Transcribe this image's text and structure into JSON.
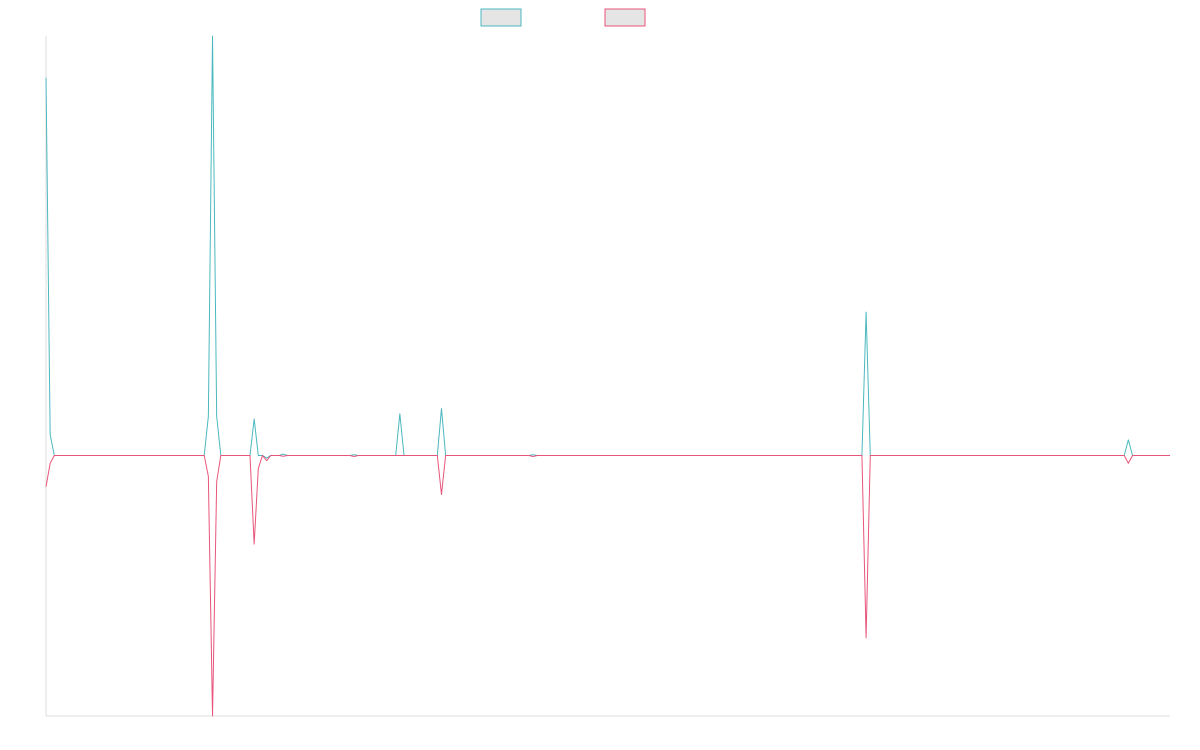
{
  "chart_data": {
    "type": "line",
    "title": "",
    "xlabel": "",
    "ylabel": "",
    "legend_position": "top-center",
    "grid": false,
    "colors": {
      "series_a": "#4bb8bf",
      "series_b": "#e8557a",
      "axis": "#dddddd",
      "legend_fill": "#e5e5e5"
    },
    "ylim": [
      -1.0,
      1.61
    ],
    "xlim": [
      0,
      270
    ],
    "series": [
      {
        "name": "",
        "color": "#4bb8bf",
        "points": [
          [
            0,
            1.45
          ],
          [
            1,
            0.08
          ],
          [
            2,
            0
          ],
          [
            38,
            0
          ],
          [
            39,
            0.15
          ],
          [
            40,
            1.61
          ],
          [
            41,
            0.15
          ],
          [
            42,
            0
          ],
          [
            49,
            0
          ],
          [
            50,
            0.14
          ],
          [
            51,
            0
          ],
          [
            52,
            0
          ],
          [
            53,
            -0.01
          ],
          [
            54,
            0
          ],
          [
            56,
            0
          ],
          [
            57,
            0.005
          ],
          [
            58,
            0
          ],
          [
            73,
            0
          ],
          [
            74,
            0.003
          ],
          [
            75,
            0
          ],
          [
            84,
            0
          ],
          [
            85,
            0.16
          ],
          [
            86,
            0
          ],
          [
            94,
            0
          ],
          [
            95,
            0.18
          ],
          [
            96,
            0
          ],
          [
            116,
            0
          ],
          [
            117,
            0.003
          ],
          [
            118,
            0
          ],
          [
            196,
            0
          ],
          [
            197,
            0.55
          ],
          [
            198,
            0
          ],
          [
            259,
            0
          ],
          [
            260,
            0.06
          ],
          [
            261,
            0
          ],
          [
            270,
            0
          ]
        ]
      },
      {
        "name": "",
        "color": "#e8557a",
        "points": [
          [
            0,
            -0.12
          ],
          [
            1,
            -0.03
          ],
          [
            2,
            0
          ],
          [
            38,
            0
          ],
          [
            39,
            -0.08
          ],
          [
            40,
            -1.0
          ],
          [
            41,
            -0.1
          ],
          [
            42,
            0
          ],
          [
            49,
            0
          ],
          [
            50,
            -0.34
          ],
          [
            51,
            -0.05
          ],
          [
            52,
            0
          ],
          [
            53,
            -0.02
          ],
          [
            54,
            0
          ],
          [
            56,
            0
          ],
          [
            57,
            -0.003
          ],
          [
            58,
            0
          ],
          [
            73,
            0
          ],
          [
            74,
            -0.004
          ],
          [
            75,
            0
          ],
          [
            94,
            0
          ],
          [
            95,
            -0.15
          ],
          [
            96,
            0
          ],
          [
            116,
            0
          ],
          [
            117,
            -0.004
          ],
          [
            118,
            0
          ],
          [
            196,
            0
          ],
          [
            197,
            -0.7
          ],
          [
            198,
            0
          ],
          [
            259,
            0
          ],
          [
            260,
            -0.03
          ],
          [
            261,
            0
          ],
          [
            270,
            0
          ]
        ]
      }
    ]
  }
}
